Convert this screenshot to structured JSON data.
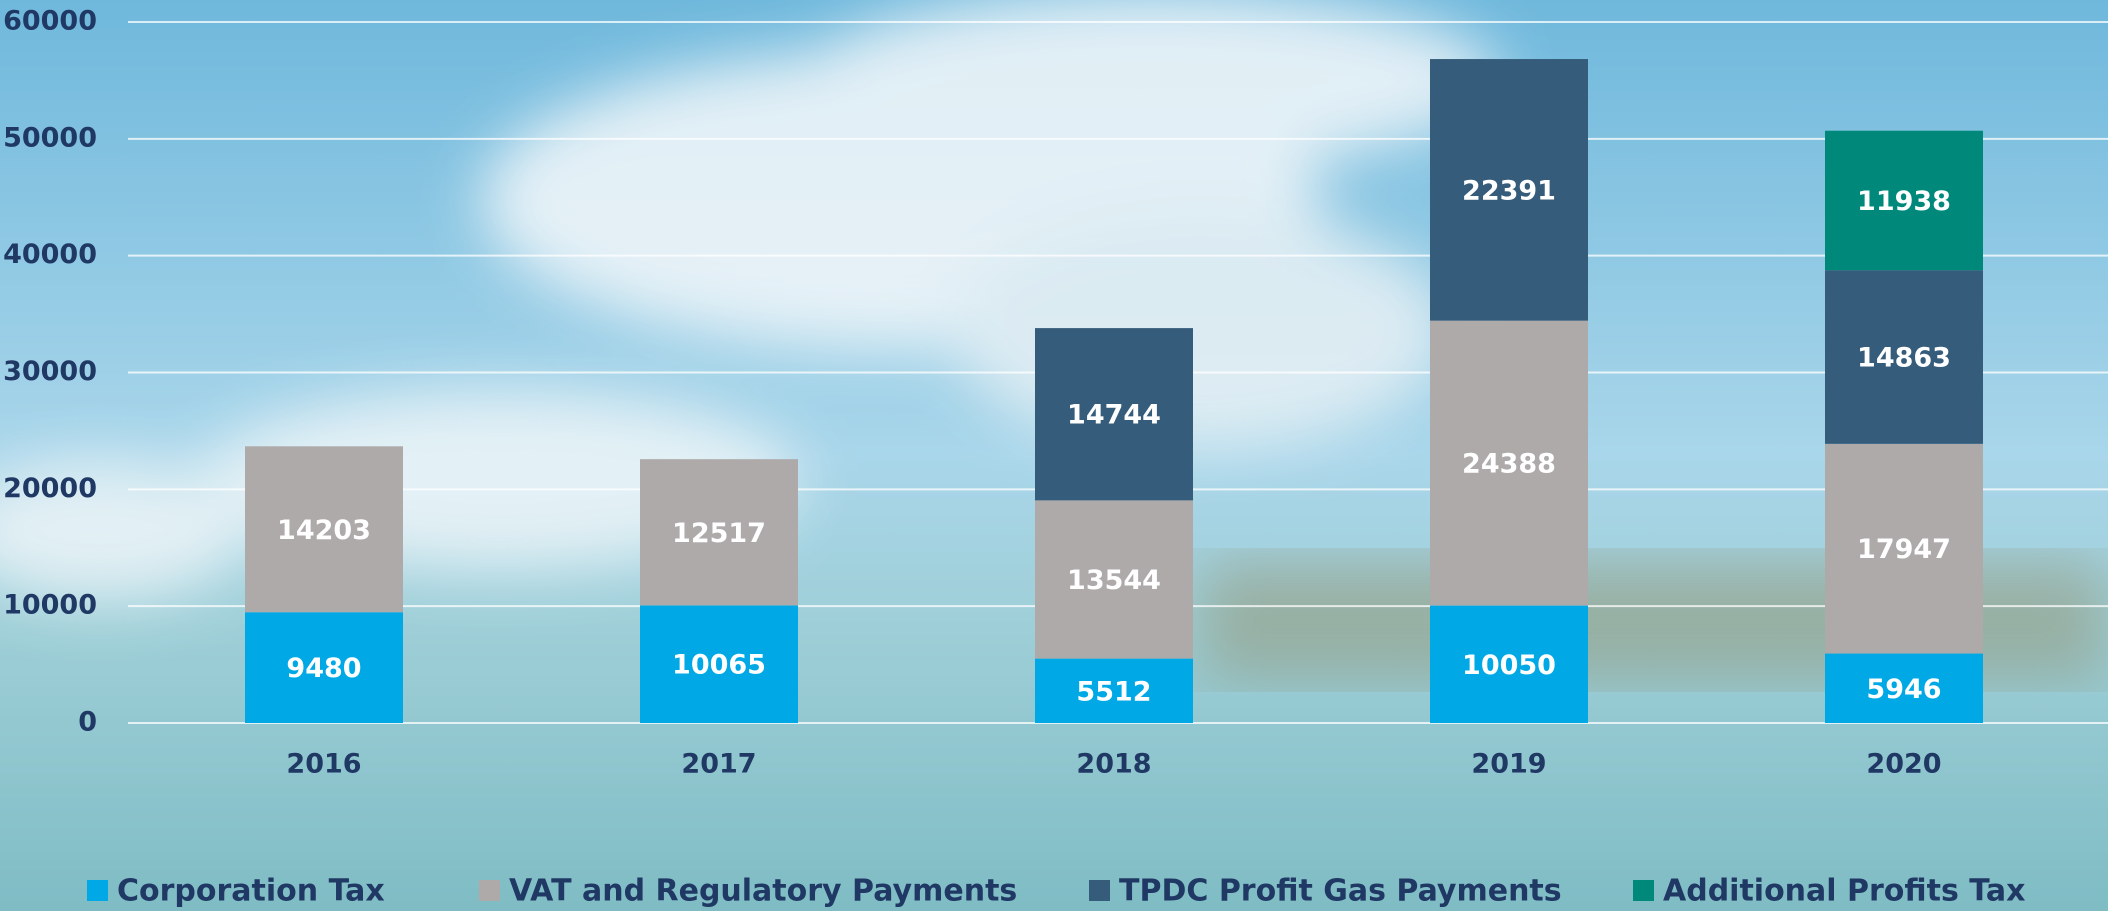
{
  "chart_data": {
    "type": "stacked_bar",
    "categories": [
      "2016",
      "2017",
      "2018",
      "2019",
      "2020"
    ],
    "series": [
      {
        "name": "Corporation Tax",
        "color": "#00a9e6",
        "values": [
          9480,
          10065,
          5512,
          10050,
          5946
        ]
      },
      {
        "name": "VAT and Regulatory Payments",
        "color": "#aeaaaa",
        "values": [
          14203,
          12517,
          13544,
          24388,
          17947
        ]
      },
      {
        "name": "TPDC Profit Gas Payments",
        "color": "#355c7a",
        "values": [
          null,
          null,
          14744,
          22391,
          14863
        ]
      },
      {
        "name": "Additional Profits Tax",
        "color": "#00897b",
        "values": [
          null,
          null,
          null,
          null,
          11938
        ]
      }
    ],
    "ylim": [
      0,
      60000
    ],
    "yticks": [
      0,
      10000,
      20000,
      30000,
      40000,
      50000,
      60000
    ],
    "grid": true
  }
}
